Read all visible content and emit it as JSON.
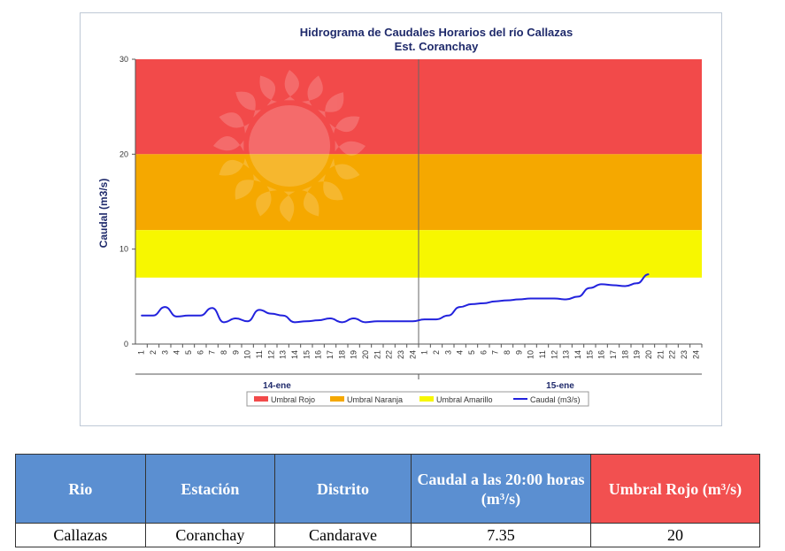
{
  "chart_data": {
    "type": "line",
    "title": "Hidrograma de Caudales Horarios del río Callazas",
    "subtitle": "Est. Coranchay",
    "ylabel": "Caudal  (m3/s)",
    "xlabel": "",
    "ylim": [
      0,
      30
    ],
    "yticks": [
      "0",
      "10",
      "20",
      "30"
    ],
    "hours": [
      "1",
      "2",
      "3",
      "4",
      "5",
      "6",
      "7",
      "8",
      "9",
      "10",
      "11",
      "12",
      "13",
      "14",
      "15",
      "16",
      "17",
      "18",
      "19",
      "20",
      "21",
      "22",
      "23",
      "24"
    ],
    "days": [
      "14-ene",
      "15-ene"
    ],
    "bands": [
      {
        "name": "Umbral Rojo",
        "from": 20,
        "to": 30,
        "color": "#f24a4a"
      },
      {
        "name": "Umbral Naranja",
        "from": 12,
        "to": 20,
        "color": "#f5a800"
      },
      {
        "name": "Umbral Amarillo",
        "from": 7,
        "to": 12,
        "color": "#f7f700"
      }
    ],
    "series": [
      {
        "name": "Caudal (m3/s)",
        "color": "#2222dd",
        "x": [
          1,
          2,
          3,
          4,
          5,
          6,
          7,
          8,
          9,
          10,
          11,
          12,
          13,
          14,
          15,
          16,
          17,
          18,
          19,
          20,
          21,
          22,
          23,
          24,
          25,
          26,
          27,
          28,
          29,
          30,
          31,
          32,
          33,
          34,
          35,
          36,
          37,
          38,
          39,
          40,
          41,
          42,
          43,
          44
        ],
        "values": [
          3.0,
          3.0,
          3.9,
          2.9,
          3.0,
          3.0,
          3.8,
          2.3,
          2.7,
          2.4,
          3.6,
          3.2,
          3.0,
          2.3,
          2.4,
          2.5,
          2.7,
          2.3,
          2.7,
          2.3,
          2.4,
          2.4,
          2.4,
          2.4,
          2.6,
          2.6,
          3.0,
          3.9,
          4.2,
          4.3,
          4.5,
          4.6,
          4.7,
          4.8,
          4.8,
          4.8,
          4.7,
          5.0,
          5.9,
          6.3,
          6.2,
          6.1,
          6.4,
          7.35
        ]
      }
    ],
    "legend": [
      "Umbral Rojo",
      "Umbral Naranja",
      "Umbral Amarillo",
      "Caudal (m3/s)"
    ],
    "legend_position": "bottom",
    "grid": false
  },
  "table": {
    "headers": [
      "Rio",
      "Estación",
      "Distrito",
      "Caudal a las 20:00 horas (m³/s)",
      "Umbral Rojo (m³/s)"
    ],
    "row": [
      "Callazas",
      "Coranchay",
      "Candarave",
      "7.35",
      "20"
    ]
  },
  "colors": {
    "header_blue": "#5b8fd1",
    "header_red": "#f25050"
  }
}
